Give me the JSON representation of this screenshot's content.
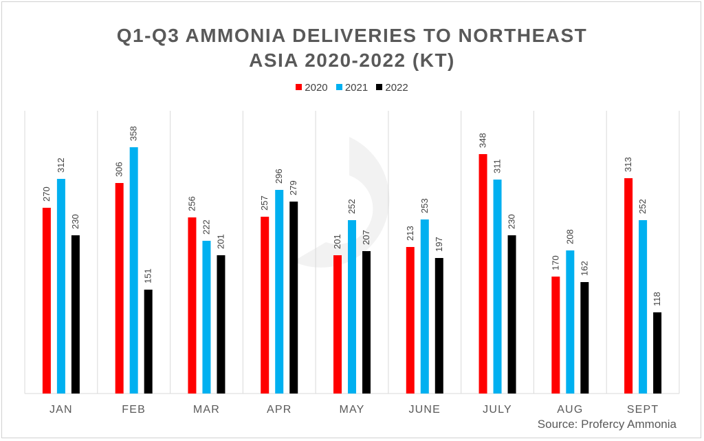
{
  "chart_data": {
    "type": "bar",
    "title": "Q1-Q3 AMMONIA DELIVERIES TO NORTHEAST ASIA 2020-2022 (KT)",
    "title_lines": [
      "Q1-Q3 AMMONIA DELIVERIES TO NORTHEAST",
      "ASIA 2020-2022 (KT)"
    ],
    "categories": [
      "JAN",
      "FEB",
      "MAR",
      "APR",
      "MAY",
      "JUNE",
      "JULY",
      "AUG",
      "SEPT"
    ],
    "series": [
      {
        "name": "2020",
        "color": "#ff0000",
        "values": [
          270,
          306,
          256,
          257,
          201,
          213,
          348,
          170,
          313
        ]
      },
      {
        "name": "2021",
        "color": "#00b0f0",
        "values": [
          312,
          358,
          222,
          296,
          252,
          253,
          311,
          208,
          252
        ]
      },
      {
        "name": "2022",
        "color": "#000000",
        "values": [
          230,
          151,
          201,
          279,
          207,
          197,
          230,
          162,
          118
        ]
      }
    ],
    "xlabel": "",
    "ylabel": "",
    "ylim": [
      0,
      380
    ],
    "grid": "vertical category separators",
    "legend_position": "top"
  },
  "source_text": "Source: Profercy Ammonia"
}
